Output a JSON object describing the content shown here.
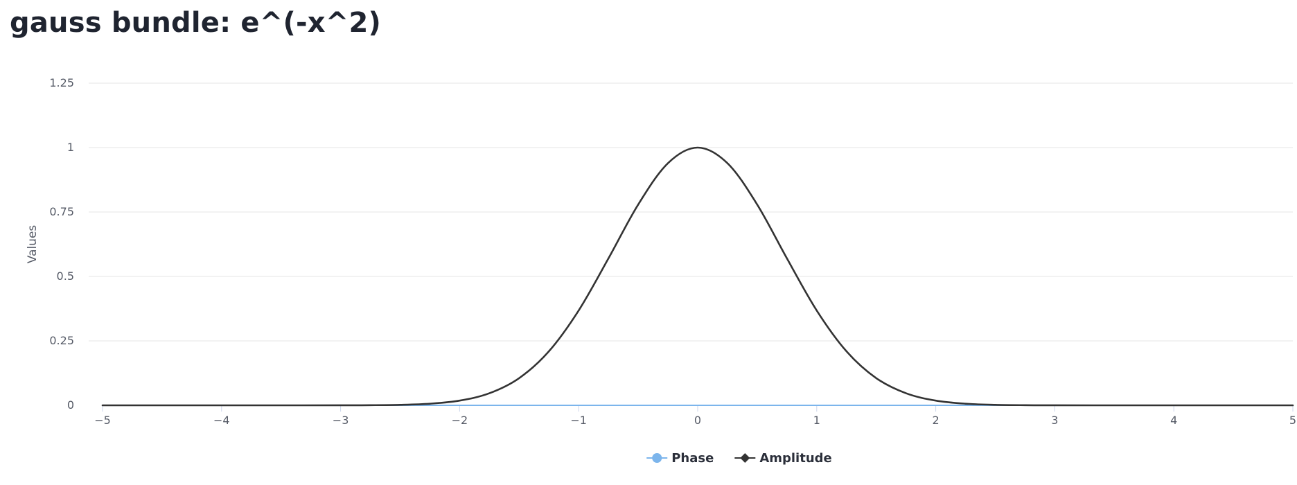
{
  "title": "gauss bundle: e^(-x^2)",
  "chart_data": {
    "type": "line",
    "title": "gauss bundle: e^(-x^2)",
    "xlabel": "",
    "ylabel": "Values",
    "xlim": [
      -5,
      5
    ],
    "ylim": [
      0,
      1.25
    ],
    "x_ticks": [
      -5,
      -4,
      -3,
      -2,
      -1,
      0,
      1,
      2,
      3,
      4,
      5
    ],
    "x_tick_labels": [
      "−5",
      "−4",
      "−3",
      "−2",
      "−1",
      "0",
      "1",
      "2",
      "3",
      "4",
      "5"
    ],
    "y_ticks": [
      0,
      0.25,
      0.5,
      0.75,
      1,
      1.25
    ],
    "y_tick_labels": [
      "0",
      "0.25",
      "0.5",
      "0.75",
      "1",
      "1.25"
    ],
    "grid": "horizontal",
    "legend_position": "bottom-center",
    "x": [
      -5,
      -4.5,
      -4,
      -3.5,
      -3,
      -2.75,
      -2.5,
      -2.25,
      -2,
      -1.75,
      -1.5,
      -1.25,
      -1,
      -0.75,
      -0.5,
      -0.25,
      0,
      0.25,
      0.5,
      0.75,
      1,
      1.25,
      1.5,
      1.75,
      2,
      2.25,
      2.5,
      2.75,
      3,
      3.5,
      4,
      4.5,
      5
    ],
    "series": [
      {
        "name": "Phase",
        "color": "#7cb5ec",
        "marker": "circle",
        "values": [
          0,
          0,
          0,
          0,
          0,
          0,
          0,
          0,
          0,
          0,
          0,
          0,
          0,
          0,
          0,
          0,
          0,
          0,
          0,
          0,
          0,
          0,
          0,
          0,
          0,
          0,
          0,
          0,
          0,
          0,
          0,
          0,
          0
        ]
      },
      {
        "name": "Amplitude",
        "color": "#333333",
        "marker": "diamond",
        "values": [
          0,
          0,
          0,
          0,
          0.0001,
          0.0005,
          0.0019,
          0.0063,
          0.0183,
          0.0468,
          0.1054,
          0.2096,
          0.3679,
          0.5698,
          0.7788,
          0.9394,
          1,
          0.9394,
          0.7788,
          0.5698,
          0.3679,
          0.2096,
          0.1054,
          0.0468,
          0.0183,
          0.0063,
          0.0019,
          0.0005,
          0.0001,
          0,
          0,
          0,
          0
        ]
      }
    ]
  }
}
